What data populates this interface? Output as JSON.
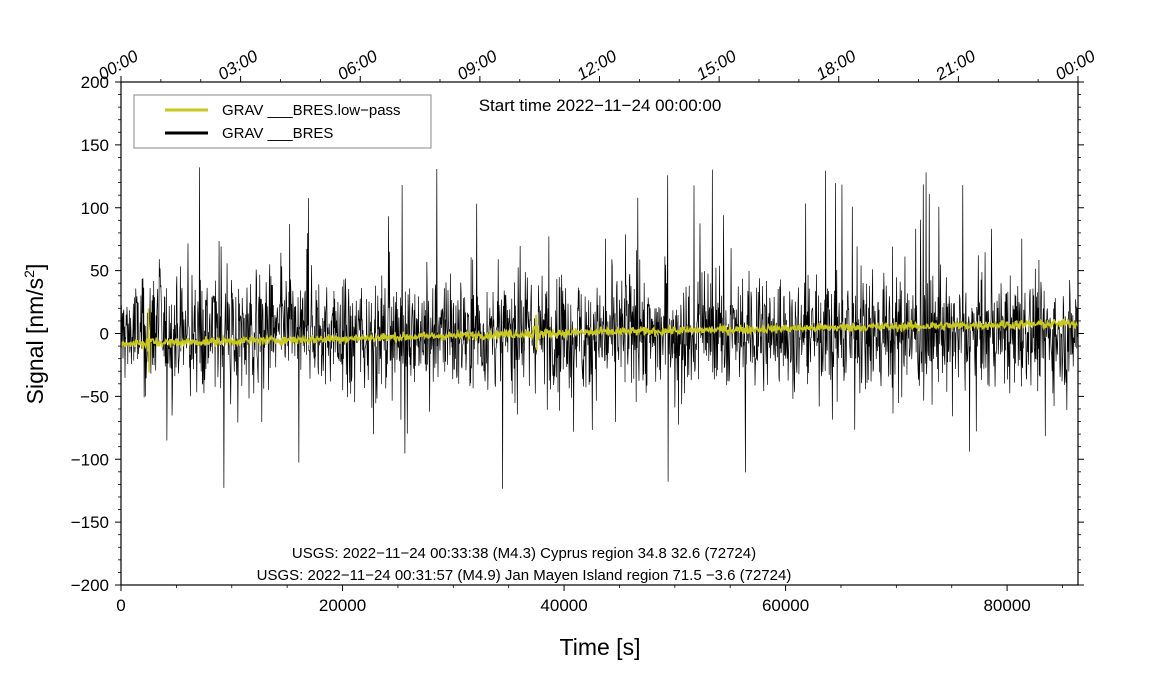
{
  "chart_data": {
    "type": "line",
    "x_range": [
      0,
      86400
    ],
    "ylim": [
      -200,
      200
    ],
    "xlabel": "Time [s]",
    "ylabel_main": "Signal [nm/s",
    "ylabel_sup": "2",
    "ylabel_close": "]",
    "x_ticks": [
      0,
      20000,
      40000,
      60000,
      80000
    ],
    "x_tick_labels": [
      "0",
      "20000",
      "40000",
      "60000",
      "80000"
    ],
    "y_ticks": [
      -200,
      -150,
      -100,
      -50,
      0,
      50,
      100,
      150,
      200
    ],
    "y_tick_labels": [
      "−200",
      "−150",
      "−100",
      "−50",
      "0",
      "50",
      "100",
      "150",
      "200"
    ],
    "top_ticks_seconds": [
      0,
      10800,
      21600,
      32400,
      43200,
      54000,
      64800,
      75600,
      86400
    ],
    "top_tick_labels": [
      "00:00",
      "03:00",
      "06:00",
      "09:00",
      "12:00",
      "15:00",
      "18:00",
      "21:00",
      "00:00"
    ],
    "start_time_label": "Start time 2022−11−24 00:00:00",
    "annotations": [
      "USGS: 2022−11−24 00:33:38 (M4.3) Cyprus region 34.8 32.6 (72724)",
      "USGS: 2022−11−24 00:31:57 (M4.9) Jan Mayen Island region 71.5 −3.6 (72724)"
    ],
    "legend_position": "top-left",
    "series": [
      {
        "name": "GRAV ___BRES",
        "color": "#000000",
        "noise_envelope": {
          "typical_amplitude": 40,
          "peak_amplitude": 135
        }
      },
      {
        "name": "GRAV ___BRES.low−pass",
        "color": "#c8c81e",
        "trend": {
          "x": [
            0,
            20000,
            37500,
            60000,
            86400
          ],
          "y": [
            -8,
            -4,
            0,
            4,
            8
          ]
        },
        "events": [
          {
            "x": 2500,
            "y_max": 20,
            "y_min": -31
          },
          {
            "x": 37500,
            "y_max": 15,
            "y_min": -13
          }
        ]
      }
    ]
  }
}
